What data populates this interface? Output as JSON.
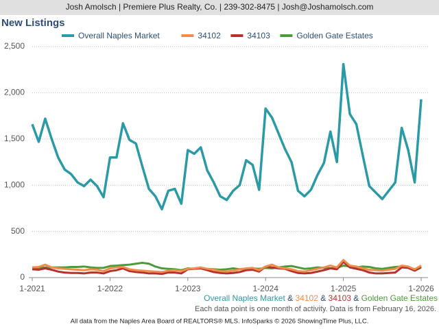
{
  "header": "Josh Amolsch | Premiere Plus Realty, Co. | 239-302-8475 | Josh@Joshamolsch.com",
  "chart_data": {
    "type": "line",
    "title": "New Listings",
    "categories": [
      "1-2021",
      null,
      null,
      null,
      null,
      null,
      null,
      null,
      null,
      null,
      null,
      null,
      "1-2022",
      null,
      null,
      null,
      null,
      null,
      null,
      null,
      null,
      null,
      null,
      null,
      "1-2023",
      null,
      null,
      null,
      null,
      null,
      null,
      null,
      null,
      null,
      null,
      null,
      "1-2024",
      null,
      null,
      null,
      null,
      null,
      null,
      null,
      null,
      null,
      null,
      null,
      "1-2025",
      null,
      null,
      null,
      null,
      null,
      null,
      null,
      null,
      null,
      null,
      null,
      "1-2026"
    ],
    "series": [
      {
        "name": "Overall Naples Market",
        "color": "#2a9aa6",
        "values": [
          1660,
          1470,
          1720,
          1500,
          1300,
          1170,
          1120,
          1030,
          990,
          1060,
          990,
          870,
          1300,
          1300,
          1670,
          1490,
          1450,
          1200,
          960,
          880,
          740,
          940,
          960,
          800,
          1380,
          1340,
          1410,
          1160,
          1030,
          880,
          840,
          940,
          1000,
          1270,
          1220,
          950,
          1830,
          1730,
          1560,
          1390,
          1250,
          940,
          880,
          950,
          1110,
          1240,
          1580,
          1250,
          2310,
          1770,
          1660,
          1320,
          990,
          920,
          850,
          940,
          1030,
          1620,
          1380,
          1030,
          1930
        ]
      },
      {
        "name": "34102",
        "color": "#f28c4a",
        "values": [
          110,
          115,
          140,
          110,
          100,
          95,
          90,
          85,
          80,
          90,
          85,
          70,
          100,
          110,
          115,
          90,
          80,
          75,
          70,
          65,
          60,
          75,
          80,
          70,
          95,
          100,
          110,
          95,
          85,
          70,
          65,
          75,
          90,
          100,
          105,
          80,
          120,
          140,
          110,
          100,
          90,
          70,
          65,
          80,
          95,
          110,
          130,
          110,
          190,
          130,
          120,
          100,
          85,
          80,
          75,
          85,
          95,
          130,
          120,
          90,
          130
        ]
      },
      {
        "name": "34103",
        "color": "#b5312c",
        "values": [
          90,
          85,
          100,
          85,
          65,
          55,
          50,
          50,
          45,
          55,
          55,
          45,
          70,
          80,
          100,
          70,
          60,
          55,
          45,
          45,
          40,
          55,
          55,
          45,
          90,
          95,
          100,
          80,
          60,
          50,
          45,
          50,
          60,
          80,
          85,
          65,
          120,
          110,
          100,
          95,
          70,
          50,
          45,
          50,
          65,
          80,
          100,
          90,
          170,
          110,
          95,
          80,
          55,
          45,
          45,
          50,
          55,
          110,
          105,
          75,
          115
        ]
      },
      {
        "name": "Golden Gate Estates",
        "color": "#4c9a3a",
        "values": [
          100,
          105,
          110,
          110,
          110,
          110,
          115,
          115,
          120,
          110,
          105,
          105,
          125,
          130,
          135,
          140,
          150,
          160,
          150,
          120,
          100,
          95,
          90,
          80,
          100,
          95,
          100,
          95,
          90,
          85,
          90,
          100,
          90,
          95,
          100,
          95,
          105,
          100,
          110,
          120,
          125,
          110,
          95,
          100,
          110,
          105,
          100,
          105,
          130,
          120,
          110,
          120,
          115,
          100,
          95,
          105,
          115,
          120,
          110,
          75,
          110
        ]
      }
    ],
    "ylim": [
      0,
      2500
    ],
    "yticks": [
      0,
      500,
      {
        "value": 1000,
        "label": "1,000"
      },
      {
        "value": 1500,
        "label": "1,500"
      },
      {
        "value": 2000,
        "label": "2,000"
      },
      {
        "value": 2500,
        "label": "2,500"
      }
    ],
    "grid": true,
    "legend_separator": "&",
    "note": "Each data point is one month of activity. Data is from February 16, 2026.",
    "footer": "All data from the Naples Area Board of REALTORS® MLS. InfoSparks © 2026 ShowingTime Plus, LLC."
  }
}
